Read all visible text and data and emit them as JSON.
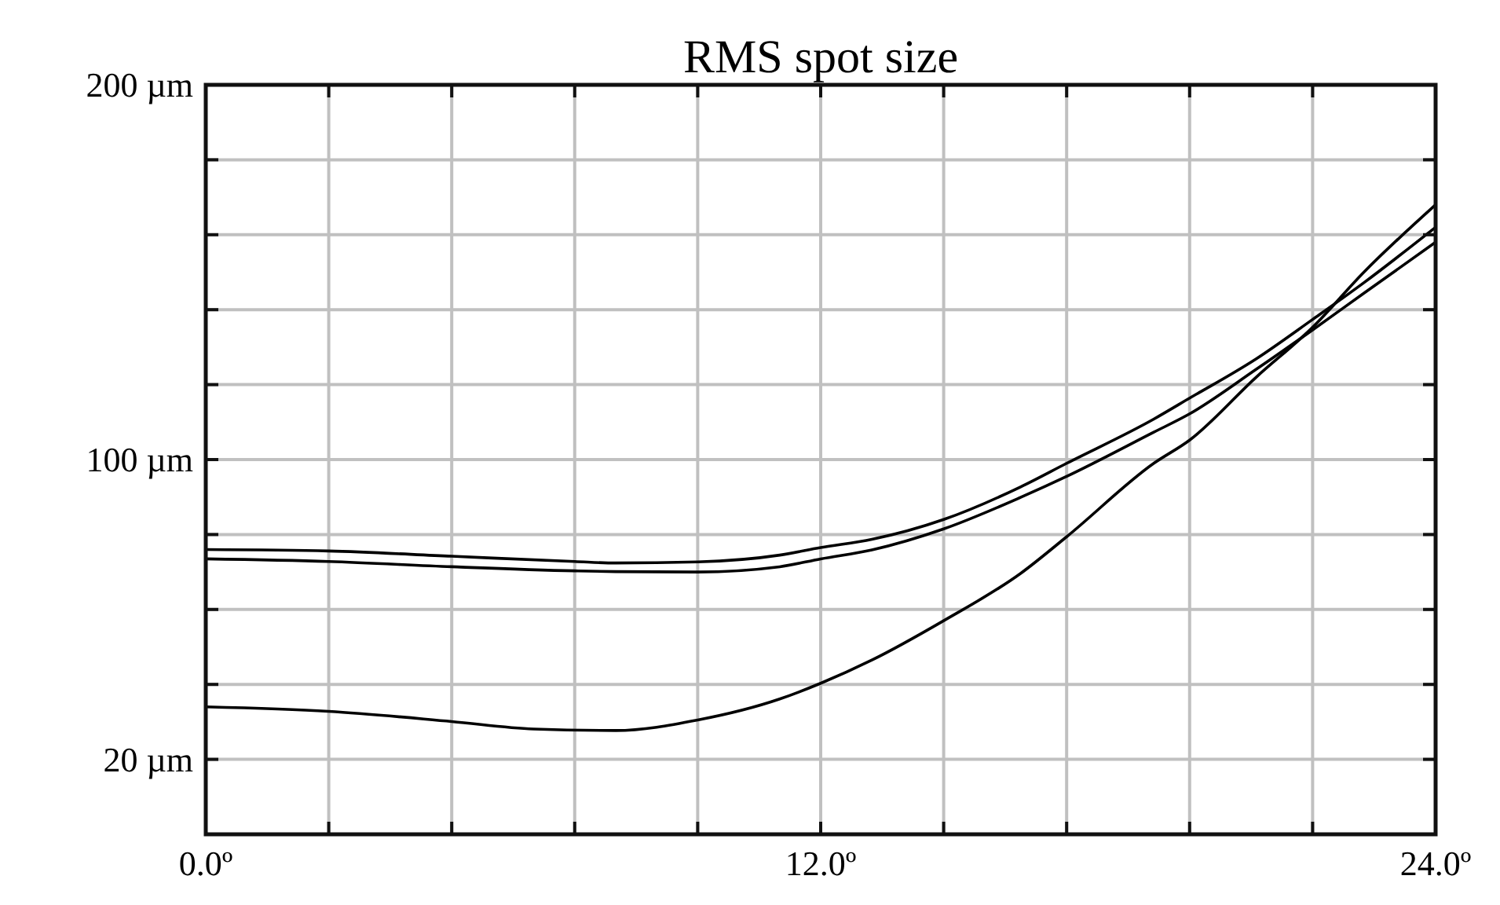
{
  "chart_data": {
    "type": "line",
    "title": "RMS spot size",
    "xlim": [
      0,
      24
    ],
    "ylim": [
      0,
      200
    ],
    "xticks": [
      {
        "value": 0,
        "label": "0.0º"
      },
      {
        "value": 2.4,
        "label": null
      },
      {
        "value": 4.8,
        "label": null
      },
      {
        "value": 7.2,
        "label": null
      },
      {
        "value": 9.6,
        "label": null
      },
      {
        "value": 12,
        "label": "12.0º"
      },
      {
        "value": 14.4,
        "label": null
      },
      {
        "value": 16.8,
        "label": null
      },
      {
        "value": 19.2,
        "label": null
      },
      {
        "value": 21.6,
        "label": null
      },
      {
        "value": 24,
        "label": "24.0º"
      }
    ],
    "yticks": [
      {
        "value": 0,
        "label": null
      },
      {
        "value": 20,
        "label": "20 µm"
      },
      {
        "value": 40,
        "label": null
      },
      {
        "value": 60,
        "label": null
      },
      {
        "value": 80,
        "label": null
      },
      {
        "value": 100,
        "label": "100 µm"
      },
      {
        "value": 120,
        "label": null
      },
      {
        "value": 140,
        "label": null
      },
      {
        "value": 160,
        "label": null
      },
      {
        "value": 180,
        "label": null
      },
      {
        "value": 200,
        "label": "200 µm"
      }
    ],
    "grid": true,
    "line_style": "solid",
    "marker": "none",
    "series": [
      {
        "color": "#000000",
        "x": [
          0,
          2.4,
          4.8,
          7.2,
          8,
          9.6,
          11.2,
          12,
          13,
          14.4,
          15.9,
          16.8,
          18.5,
          19.2,
          20.5,
          21.6,
          22.6,
          24
        ],
        "values": [
          76,
          75.6,
          74.2,
          72.8,
          72.4,
          72.7,
          74.5,
          76.5,
          78.7,
          84,
          92.7,
          99,
          110.8,
          116.4,
          126.9,
          137.4,
          147.2,
          162
        ]
      },
      {
        "color": "#000000",
        "x": [
          0,
          2.4,
          4.8,
          7.2,
          8,
          9.6,
          11.2,
          12,
          13,
          14.4,
          15.9,
          16.8,
          18.5,
          19.2,
          20.5,
          21.6,
          22.6,
          24
        ],
        "values": [
          73.5,
          72.8,
          71.4,
          70.3,
          70.1,
          70,
          71.4,
          73.5,
          75.9,
          81.5,
          89.9,
          95.5,
          107.3,
          112.2,
          124.1,
          134.6,
          144.4,
          158
        ]
      },
      {
        "color": "#000000",
        "x": [
          0,
          2.4,
          4.8,
          6.4,
          8,
          9.6,
          11.2,
          12,
          13,
          14.4,
          15.9,
          16.8,
          18.5,
          19.2,
          20.5,
          21.6,
          22.6,
          24
        ],
        "values": [
          34,
          32.8,
          30.1,
          28.1,
          27.7,
          30.5,
          36.1,
          40.3,
          46.5,
          57,
          69.6,
          79.4,
          99,
          105.2,
          122,
          135.3,
          150,
          168
        ]
      }
    ]
  }
}
